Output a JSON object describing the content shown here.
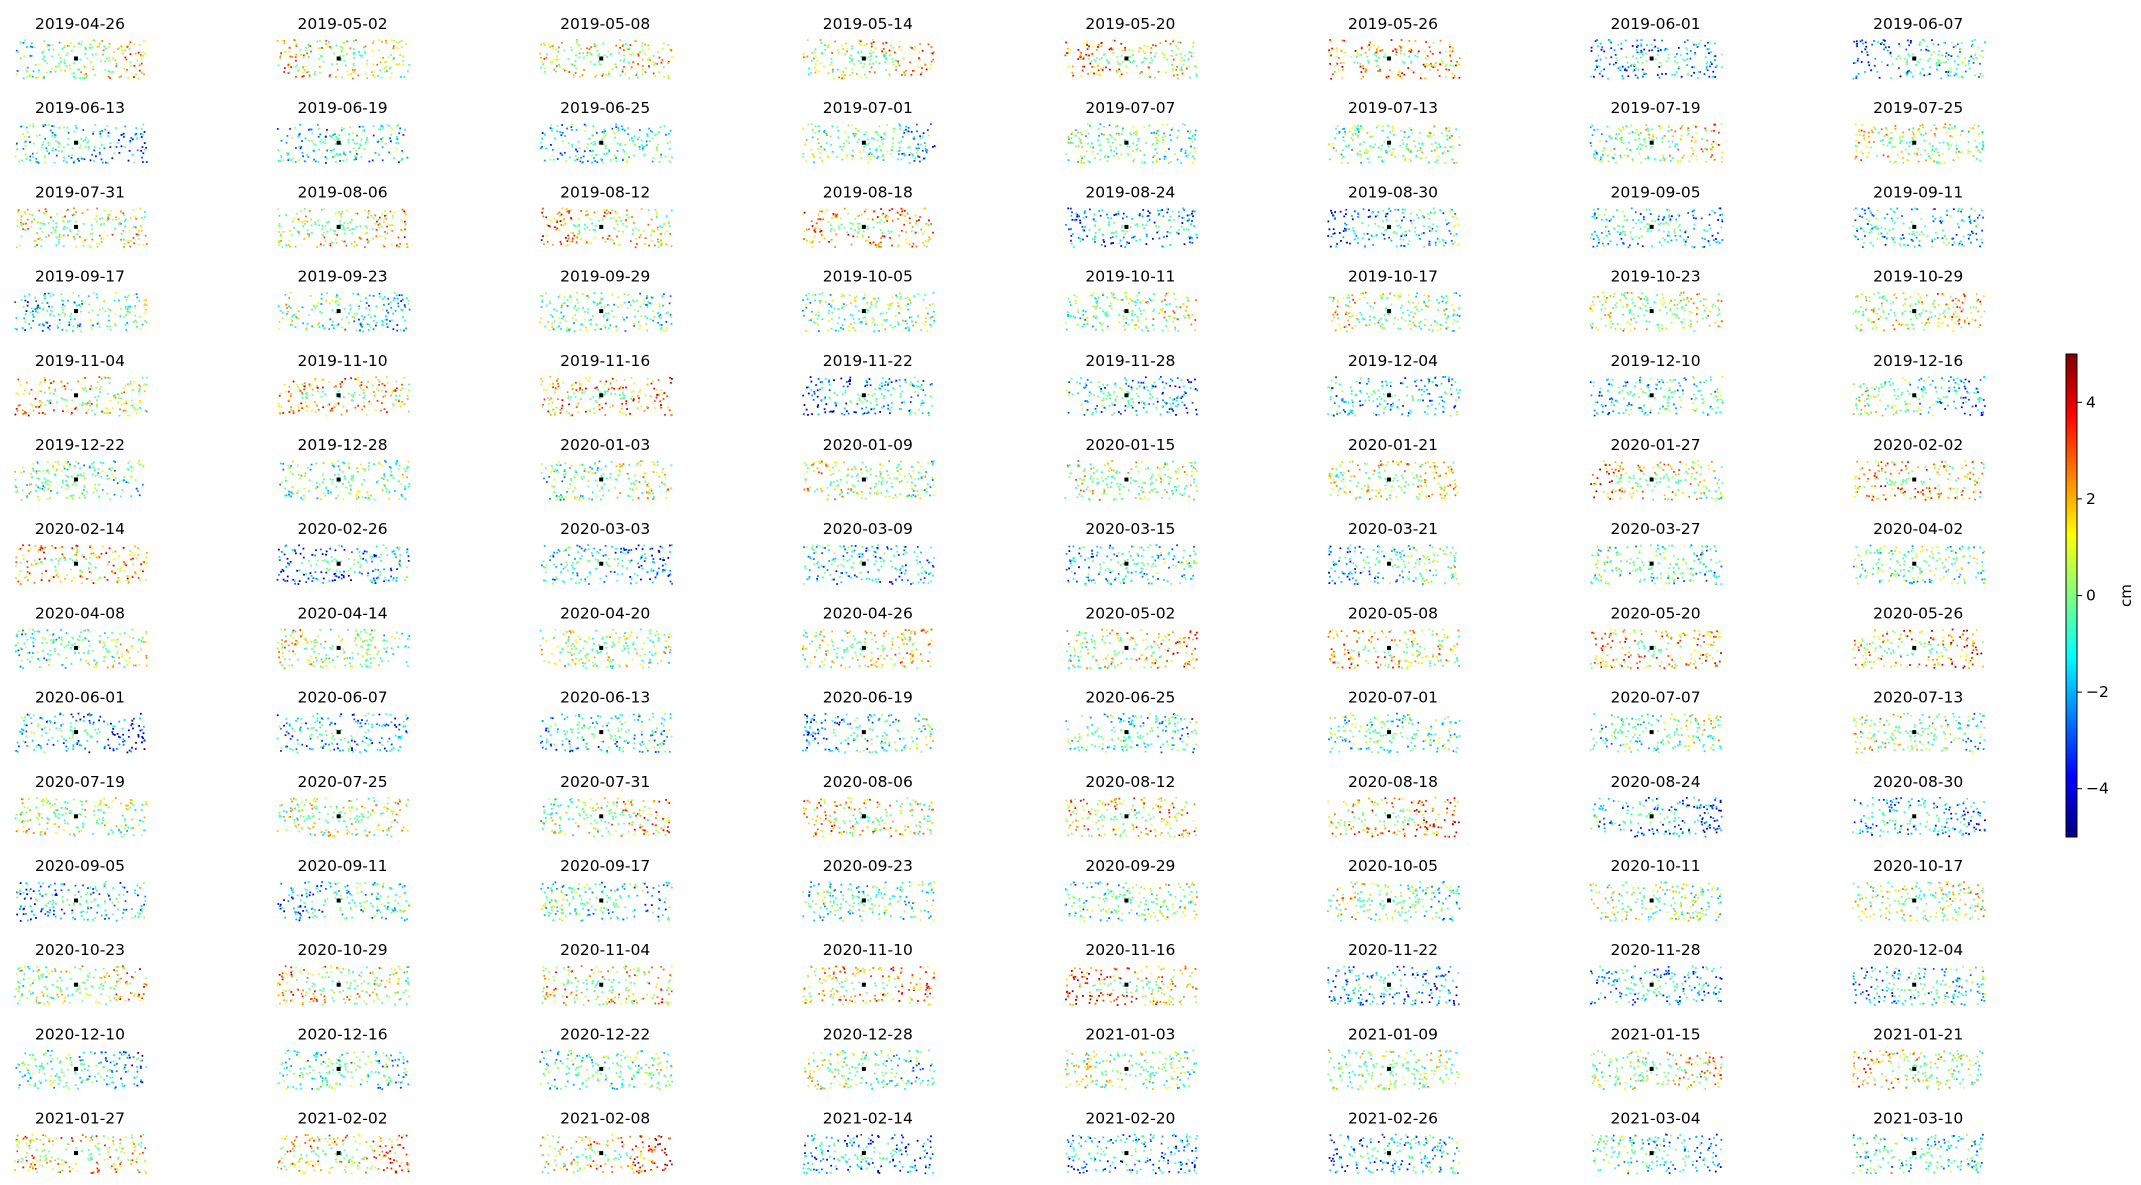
{
  "chart_data": {
    "type": "scatter",
    "description_of_grid": "small-multiples",
    "grid": false,
    "dates": [
      "2019-04-26",
      "2019-05-02",
      "2019-05-08",
      "2019-05-14",
      "2019-05-20",
      "2019-05-26",
      "2019-06-01",
      "2019-06-07",
      "2019-06-13",
      "2019-06-19",
      "2019-06-25",
      "2019-07-01",
      "2019-07-07",
      "2019-07-13",
      "2019-07-19",
      "2019-07-25",
      "2019-07-31",
      "2019-08-06",
      "2019-08-12",
      "2019-08-18",
      "2019-08-24",
      "2019-08-30",
      "2019-09-05",
      "2019-09-11",
      "2019-09-17",
      "2019-09-23",
      "2019-09-29",
      "2019-10-05",
      "2019-10-11",
      "2019-10-17",
      "2019-10-23",
      "2019-10-29",
      "2019-11-04",
      "2019-11-10",
      "2019-11-16",
      "2019-11-22",
      "2019-11-28",
      "2019-12-04",
      "2019-12-10",
      "2019-12-16",
      "2019-12-22",
      "2019-12-28",
      "2020-01-03",
      "2020-01-09",
      "2020-01-15",
      "2020-01-21",
      "2020-01-27",
      "2020-02-02",
      "2020-02-14",
      "2020-02-26",
      "2020-03-03",
      "2020-03-09",
      "2020-03-15",
      "2020-03-21",
      "2020-03-27",
      "2020-04-02",
      "2020-04-08",
      "2020-04-14",
      "2020-04-20",
      "2020-04-26",
      "2020-05-02",
      "2020-05-08",
      "2020-05-20",
      "2020-05-26",
      "2020-06-01",
      "2020-06-07",
      "2020-06-13",
      "2020-06-19",
      "2020-06-25",
      "2020-07-01",
      "2020-07-07",
      "2020-07-13",
      "2020-07-19",
      "2020-07-25",
      "2020-07-31",
      "2020-08-06",
      "2020-08-12",
      "2020-08-18",
      "2020-08-24",
      "2020-08-30",
      "2020-09-05",
      "2020-09-11",
      "2020-09-17",
      "2020-09-23",
      "2020-09-29",
      "2020-10-05",
      "2020-10-11",
      "2020-10-17",
      "2020-10-23",
      "2020-10-29",
      "2020-11-04",
      "2020-11-10",
      "2020-11-16",
      "2020-11-22",
      "2020-11-28",
      "2020-12-04",
      "2020-12-10",
      "2020-12-16",
      "2020-12-22",
      "2020-12-28",
      "2021-01-03",
      "2021-01-09",
      "2021-01-15",
      "2021-01-21",
      "2021-01-27",
      "2021-02-02",
      "2021-02-08",
      "2021-02-14",
      "2021-02-20",
      "2021-02-26",
      "2021-03-04",
      "2021-03-10"
    ],
    "colorbar": {
      "label": "cm",
      "range": [
        -5,
        5
      ],
      "ticks": [
        4,
        2,
        0,
        -2,
        -4
      ],
      "tick_labels": [
        "4",
        "2",
        "0",
        "−2",
        "−4"
      ],
      "colormap": "jet",
      "colormap_stops": [
        "#00007f",
        "#0000ff",
        "#007fff",
        "#00ffff",
        "#7fff7f",
        "#ffff00",
        "#ff7f00",
        "#ff0000",
        "#7f0000"
      ]
    }
  }
}
